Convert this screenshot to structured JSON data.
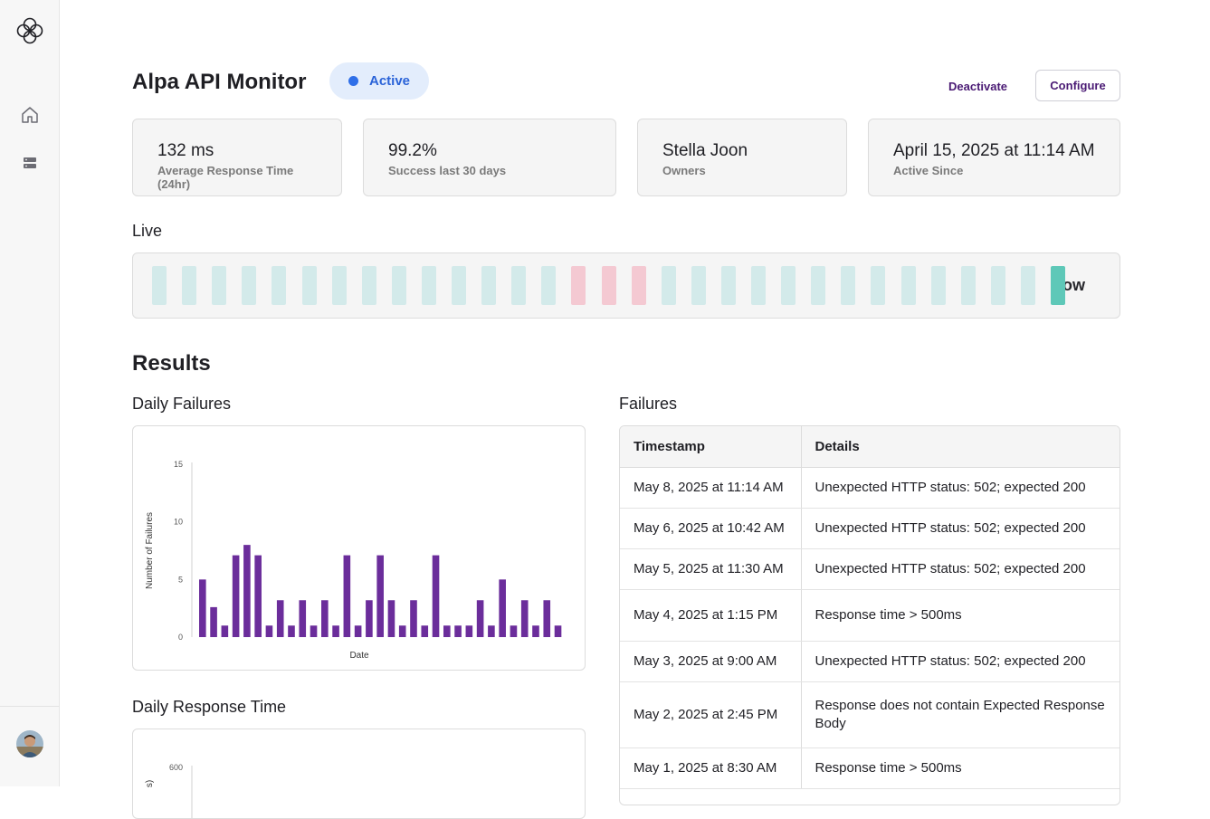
{
  "app": {
    "title": "Alpa API Monitor",
    "status": "Active",
    "colors": {
      "accent": "#4a1a74",
      "active_pill_bg": "#e3edfc",
      "active_dot": "#2f6fe8",
      "bar": "#6b2d9b",
      "live_ok": "#d3eaea",
      "live_fail": "#f4c9d2",
      "live_now": "#5ec8b8"
    }
  },
  "sidebar": {
    "items": [
      {
        "name": "home",
        "icon": "home-icon"
      },
      {
        "name": "servers",
        "icon": "server-icon"
      }
    ],
    "avatar": "user-avatar"
  },
  "header": {
    "deactivate_label": "Deactivate",
    "configure_label": "Configure"
  },
  "stats": [
    {
      "value": "132 ms",
      "label": "Average Response Time (24hr)"
    },
    {
      "value": "99.2%",
      "label": "Success last 30 days"
    },
    {
      "value": "Stella Joon",
      "label": "Owners"
    },
    {
      "value": "April 15, 2025 at 11:14 AM",
      "label": "Active Since"
    }
  ],
  "live": {
    "title": "Live",
    "now_label": "Now",
    "ticks": [
      "ok",
      "ok",
      "ok",
      "ok",
      "ok",
      "ok",
      "ok",
      "ok",
      "ok",
      "ok",
      "ok",
      "ok",
      "ok",
      "ok",
      "fail",
      "fail",
      "fail",
      "ok",
      "ok",
      "ok",
      "ok",
      "ok",
      "ok",
      "ok",
      "ok",
      "ok",
      "ok",
      "ok",
      "ok",
      "ok",
      "now"
    ]
  },
  "results": {
    "title": "Results",
    "daily_failures_title": "Daily Failures",
    "daily_response_title": "Daily Response Time",
    "failures_title": "Failures"
  },
  "chart_data": [
    {
      "type": "bar",
      "title": "Daily Failures",
      "xlabel": "Date",
      "ylabel": "Number of Failures",
      "ylim": [
        0,
        15
      ],
      "yticks": [
        0,
        5,
        10,
        15
      ],
      "values": [
        5,
        2.6,
        1,
        7.1,
        8,
        7.1,
        1,
        3.2,
        1,
        3.2,
        1,
        3.2,
        1,
        7.1,
        1,
        3.2,
        7.1,
        3.2,
        1,
        3.2,
        1,
        7.1,
        1,
        1,
        1,
        3.2,
        1,
        5,
        1,
        3.2,
        1,
        3.2,
        1
      ],
      "grid": false
    },
    {
      "type": "bar",
      "title": "Daily Response Time",
      "ylabel": "s)",
      "yticks": [
        600
      ],
      "values": []
    }
  ],
  "failures_table": {
    "columns": [
      "Timestamp",
      "Details"
    ],
    "rows": [
      [
        "May 8, 2025 at 11:14 AM",
        "Unexpected HTTP status: 502; expected 200"
      ],
      [
        "May 6, 2025 at 10:42 AM",
        "Unexpected HTTP status: 502; expected 200"
      ],
      [
        "May 5, 2025 at 11:30 AM",
        "Unexpected HTTP status: 502; expected 200"
      ],
      [
        "May 4, 2025 at 1:15 PM",
        "Response time > 500ms"
      ],
      [
        "May 3, 2025 at 9:00 AM",
        "Unexpected HTTP status: 502; expected 200"
      ],
      [
        "May 2, 2025 at 2:45 PM",
        "Response does not contain Expected Response Body"
      ],
      [
        "May 1, 2025 at 8:30 AM",
        "Response time > 500ms"
      ]
    ]
  }
}
